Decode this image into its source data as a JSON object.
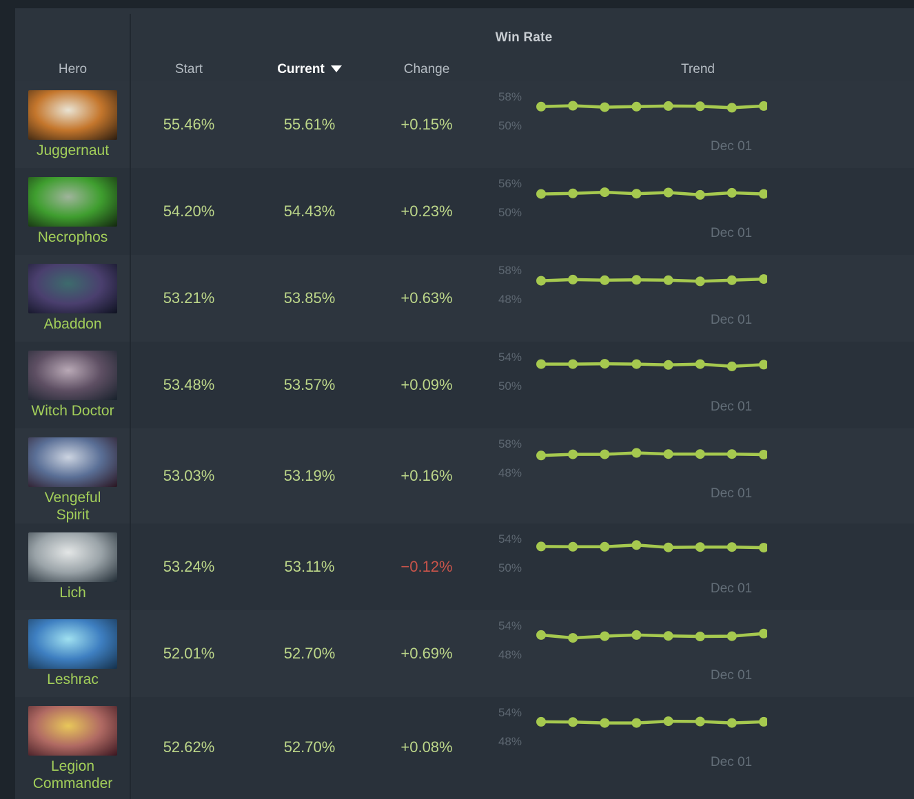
{
  "header": {
    "group_title": "Win Rate",
    "columns": {
      "hero": "Hero",
      "start": "Start",
      "current": "Current",
      "change": "Change",
      "trend": "Trend"
    },
    "sort": {
      "column": "Current",
      "direction": "descending",
      "icon": "triangle-down-icon"
    }
  },
  "colors": {
    "page_bg": "#1d242b",
    "row_odd": "#2d353e",
    "row_even": "#29313a",
    "spark_line": "#a6c94f",
    "value_green": "#bcd689",
    "value_red": "#c9544a",
    "hero_name_green": "#a3cf5a",
    "axis_gray": "#5d6771"
  },
  "rows": [
    {
      "hero": "Juggernaut",
      "start": "55.46%",
      "current": "55.61%",
      "change": "+0.15%",
      "change_dir": "up",
      "portrait": {
        "c1": "#e9e3d3",
        "c2": "#c4762c",
        "c3": "#2a1c10"
      },
      "trend": {
        "axis_top": "58%",
        "axis_bottom": "50%",
        "date_label": "Dec 01",
        "points": [
          0.72,
          0.75,
          0.7,
          0.72,
          0.74,
          0.73,
          0.68,
          0.74
        ]
      }
    },
    {
      "hero": "Necrophos",
      "start": "54.20%",
      "current": "54.43%",
      "change": "+0.23%",
      "change_dir": "up",
      "portrait": {
        "c1": "#9fb49b",
        "c2": "#3f9e2f",
        "c3": "#13260f"
      },
      "trend": {
        "axis_top": "56%",
        "axis_bottom": "50%",
        "date_label": "Dec 01",
        "points": [
          0.7,
          0.72,
          0.76,
          0.71,
          0.75,
          0.67,
          0.74,
          0.7
        ]
      }
    },
    {
      "hero": "Abaddon",
      "start": "53.21%",
      "current": "53.85%",
      "change": "+0.63%",
      "change_dir": "up",
      "portrait": {
        "c1": "#3d6b6d",
        "c2": "#4a3f6e",
        "c3": "#0e1220"
      },
      "trend": {
        "axis_top": "58%",
        "axis_bottom": "48%",
        "date_label": "Dec 01",
        "points": [
          0.7,
          0.74,
          0.72,
          0.73,
          0.72,
          0.68,
          0.72,
          0.76
        ]
      }
    },
    {
      "hero": "Witch Doctor",
      "start": "53.48%",
      "current": "53.57%",
      "change": "+0.09%",
      "change_dir": "up",
      "portrait": {
        "c1": "#b9a9b6",
        "c2": "#5e4f63",
        "c3": "#17212b"
      },
      "trend": {
        "axis_top": "54%",
        "axis_bottom": "50%",
        "date_label": "Dec 01",
        "points": [
          0.82,
          0.82,
          0.83,
          0.82,
          0.79,
          0.82,
          0.74,
          0.8
        ]
      }
    },
    {
      "hero": "Vengeful Spirit",
      "start": "53.03%",
      "current": "53.19%",
      "change": "+0.16%",
      "change_dir": "up",
      "portrait": {
        "c1": "#ccd4e1",
        "c2": "#5a6f96",
        "c3": "#2a1520"
      },
      "trend": {
        "axis_top": "58%",
        "axis_bottom": "48%",
        "date_label": "Dec 01",
        "points": [
          0.66,
          0.7,
          0.7,
          0.75,
          0.71,
          0.71,
          0.71,
          0.69
        ]
      }
    },
    {
      "hero": "Lich",
      "start": "53.24%",
      "current": "53.11%",
      "change": "−0.12%",
      "change_dir": "down",
      "portrait": {
        "c1": "#e3e6e6",
        "c2": "#9aa3a8",
        "c3": "#1f2a33"
      },
      "trend": {
        "axis_top": "54%",
        "axis_bottom": "50%",
        "date_label": "Dec 01",
        "points": [
          0.8,
          0.79,
          0.79,
          0.85,
          0.77,
          0.78,
          0.78,
          0.76
        ]
      }
    },
    {
      "hero": "Leshrac",
      "start": "52.01%",
      "current": "52.70%",
      "change": "+0.69%",
      "change_dir": "up",
      "portrait": {
        "c1": "#9fe0f0",
        "c2": "#3e7fc1",
        "c3": "#15304a"
      },
      "trend": {
        "axis_top": "54%",
        "axis_bottom": "48%",
        "date_label": "Dec 01",
        "points": [
          0.74,
          0.64,
          0.7,
          0.74,
          0.71,
          0.69,
          0.7,
          0.79
        ]
      }
    },
    {
      "hero": "Legion Commander",
      "start": "52.62%",
      "current": "52.70%",
      "change": "+0.08%",
      "change_dir": "up",
      "portrait": {
        "c1": "#e8c75a",
        "c2": "#b06a63",
        "c3": "#3a1620"
      },
      "trend": {
        "axis_top": "54%",
        "axis_bottom": "48%",
        "date_label": "Dec 01",
        "points": [
          0.74,
          0.73,
          0.7,
          0.7,
          0.76,
          0.75,
          0.7,
          0.74
        ]
      }
    }
  ]
}
